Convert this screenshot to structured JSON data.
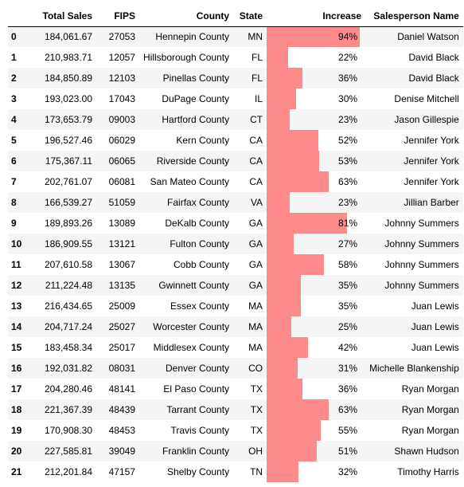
{
  "table": {
    "columns": [
      "",
      "Total Sales",
      "FIPS",
      "County",
      "State",
      "Increase",
      "Salesperson Name"
    ],
    "bar_color": "#ff8a8a",
    "stripe_color": "#f5f5f5",
    "rows": [
      {
        "index": "0",
        "total_sales": "184,061.67",
        "fips": "27053",
        "county": "Hennepin County",
        "state": "MN",
        "increase": "94%",
        "increase_value": 0.94,
        "salesperson": "Daniel Watson"
      },
      {
        "index": "1",
        "total_sales": "210,983.71",
        "fips": "12057",
        "county": "Hillsborough County",
        "state": "FL",
        "increase": "22%",
        "increase_value": 0.22,
        "salesperson": "David Black"
      },
      {
        "index": "2",
        "total_sales": "184,850.89",
        "fips": "12103",
        "county": "Pinellas County",
        "state": "FL",
        "increase": "36%",
        "increase_value": 0.36,
        "salesperson": "David Black"
      },
      {
        "index": "3",
        "total_sales": "193,023.00",
        "fips": "17043",
        "county": "DuPage County",
        "state": "IL",
        "increase": "30%",
        "increase_value": 0.3,
        "salesperson": "Denise Mitchell"
      },
      {
        "index": "4",
        "total_sales": "173,653.79",
        "fips": "09003",
        "county": "Hartford County",
        "state": "CT",
        "increase": "23%",
        "increase_value": 0.23,
        "salesperson": "Jason Gillespie"
      },
      {
        "index": "5",
        "total_sales": "196,527.46",
        "fips": "06029",
        "county": "Kern County",
        "state": "CA",
        "increase": "52%",
        "increase_value": 0.52,
        "salesperson": "Jennifer York"
      },
      {
        "index": "6",
        "total_sales": "175,367.11",
        "fips": "06065",
        "county": "Riverside County",
        "state": "CA",
        "increase": "53%",
        "increase_value": 0.53,
        "salesperson": "Jennifer York"
      },
      {
        "index": "7",
        "total_sales": "202,761.07",
        "fips": "06081",
        "county": "San Mateo County",
        "state": "CA",
        "increase": "63%",
        "increase_value": 0.63,
        "salesperson": "Jennifer York"
      },
      {
        "index": "8",
        "total_sales": "166,539.27",
        "fips": "51059",
        "county": "Fairfax County",
        "state": "VA",
        "increase": "23%",
        "increase_value": 0.23,
        "salesperson": "Jillian Barber"
      },
      {
        "index": "9",
        "total_sales": "189,893.26",
        "fips": "13089",
        "county": "DeKalb County",
        "state": "GA",
        "increase": "81%",
        "increase_value": 0.81,
        "salesperson": "Johnny Summers"
      },
      {
        "index": "10",
        "total_sales": "186,909.55",
        "fips": "13121",
        "county": "Fulton County",
        "state": "GA",
        "increase": "27%",
        "increase_value": 0.27,
        "salesperson": "Johnny Summers"
      },
      {
        "index": "11",
        "total_sales": "207,610.58",
        "fips": "13067",
        "county": "Cobb County",
        "state": "GA",
        "increase": "58%",
        "increase_value": 0.58,
        "salesperson": "Johnny Summers"
      },
      {
        "index": "12",
        "total_sales": "211,224.48",
        "fips": "13135",
        "county": "Gwinnett County",
        "state": "GA",
        "increase": "35%",
        "increase_value": 0.35,
        "salesperson": "Johnny Summers"
      },
      {
        "index": "13",
        "total_sales": "216,434.65",
        "fips": "25009",
        "county": "Essex County",
        "state": "MA",
        "increase": "35%",
        "increase_value": 0.35,
        "salesperson": "Juan Lewis"
      },
      {
        "index": "14",
        "total_sales": "204,717.24",
        "fips": "25027",
        "county": "Worcester County",
        "state": "MA",
        "increase": "25%",
        "increase_value": 0.25,
        "salesperson": "Juan Lewis"
      },
      {
        "index": "15",
        "total_sales": "183,458.34",
        "fips": "25017",
        "county": "Middlesex County",
        "state": "MA",
        "increase": "42%",
        "increase_value": 0.42,
        "salesperson": "Juan Lewis"
      },
      {
        "index": "16",
        "total_sales": "192,031.82",
        "fips": "08031",
        "county": "Denver County",
        "state": "CO",
        "increase": "31%",
        "increase_value": 0.31,
        "salesperson": "Michelle Blankenship"
      },
      {
        "index": "17",
        "total_sales": "204,280.46",
        "fips": "48141",
        "county": "El Paso County",
        "state": "TX",
        "increase": "36%",
        "increase_value": 0.36,
        "salesperson": "Ryan Morgan"
      },
      {
        "index": "18",
        "total_sales": "221,367.39",
        "fips": "48439",
        "county": "Tarrant County",
        "state": "TX",
        "increase": "63%",
        "increase_value": 0.63,
        "salesperson": "Ryan Morgan"
      },
      {
        "index": "19",
        "total_sales": "170,908.30",
        "fips": "48453",
        "county": "Travis County",
        "state": "TX",
        "increase": "55%",
        "increase_value": 0.55,
        "salesperson": "Ryan Morgan"
      },
      {
        "index": "20",
        "total_sales": "227,585.81",
        "fips": "39049",
        "county": "Franklin County",
        "state": "OH",
        "increase": "51%",
        "increase_value": 0.51,
        "salesperson": "Shawn Hudson"
      },
      {
        "index": "21",
        "total_sales": "212,201.84",
        "fips": "47157",
        "county": "Shelby County",
        "state": "TN",
        "increase": "32%",
        "increase_value": 0.32,
        "salesperson": "Timothy Harris"
      }
    ]
  }
}
